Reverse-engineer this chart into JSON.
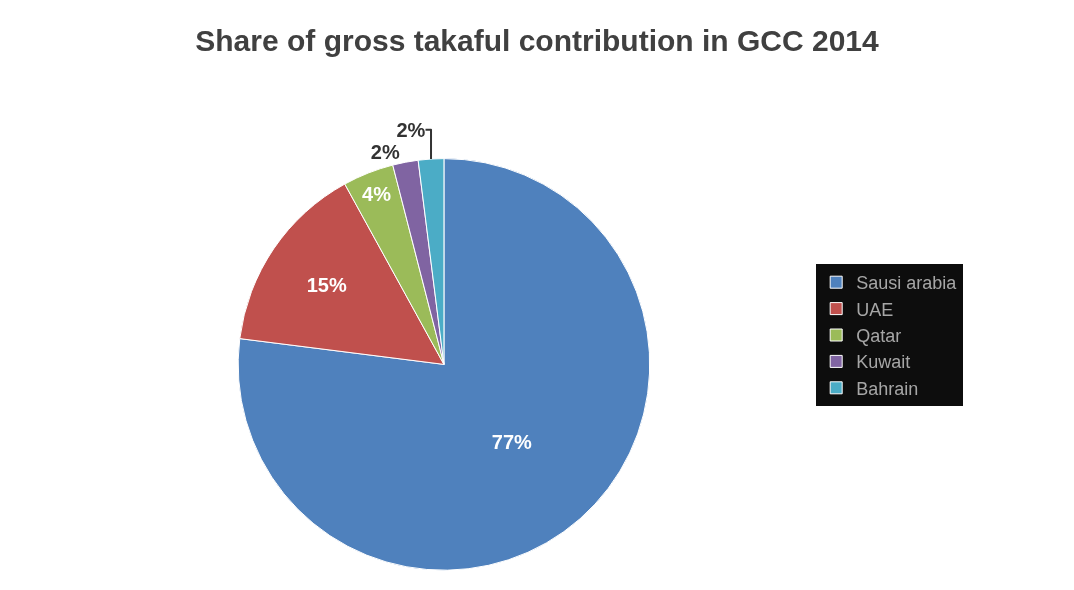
{
  "chart_data": {
    "type": "pie",
    "title": "Share of gross takaful contribution in GCC 2014",
    "categories": [
      "Sausi arabia",
      "UAE",
      "Qatar",
      "Kuwait",
      "Bahrain"
    ],
    "values": [
      77,
      15,
      4,
      2,
      2
    ],
    "colors": [
      "#4f81bd",
      "#c0504d",
      "#9bbb59",
      "#8064a2",
      "#4bacc6"
    ],
    "value_labels": [
      "77%",
      "15%",
      "4%",
      "2%",
      "2%"
    ],
    "legend": "right"
  }
}
